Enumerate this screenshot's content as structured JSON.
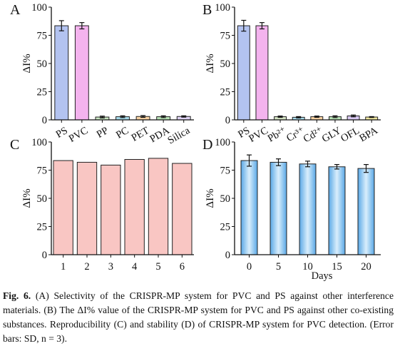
{
  "chart_data": [
    {
      "panel": "A",
      "type": "bar",
      "ylabel": "ΔI%",
      "ylim": [
        0,
        100
      ],
      "yticks": [
        0,
        25,
        50,
        75,
        100
      ],
      "grid": false,
      "categories": [
        "PS",
        "PVC",
        "PP",
        "PC",
        "PET",
        "PDA",
        "Silica"
      ],
      "values": [
        83.5,
        83.5,
        2.5,
        2.8,
        3.0,
        2.8,
        3.0
      ],
      "errors": [
        4.5,
        2.8,
        0.8,
        0.8,
        0.8,
        0.8,
        0.6
      ],
      "colors": [
        "#b3c3f0",
        "#f4b3ee",
        "#c9e6c3",
        "#a9dcec",
        "#f8d3a4",
        "#b9e3b7",
        "#ded2f3"
      ],
      "tick_rotation": -30
    },
    {
      "panel": "B",
      "type": "bar",
      "ylabel": "ΔI%",
      "ylim": [
        0,
        100
      ],
      "yticks": [
        0,
        25,
        50,
        75,
        100
      ],
      "grid": false,
      "categories": [
        "PS",
        "PVC",
        "Pb²⁺",
        "Cr³⁺",
        "Cd²⁺",
        "GLY",
        "OFL",
        "BPA"
      ],
      "values": [
        83.5,
        83.5,
        2.8,
        2.3,
        2.8,
        2.8,
        3.5,
        2.5
      ],
      "errors": [
        4.8,
        2.8,
        0.6,
        0.6,
        0.6,
        0.8,
        0.8,
        0.4
      ],
      "colors": [
        "#b3c3f0",
        "#f4b3ee",
        "#d6e5c5",
        "#a9dcec",
        "#f8d3a4",
        "#b9e3b7",
        "#d8c8f1",
        "#f1e8a0"
      ],
      "tick_rotation": -30
    },
    {
      "panel": "C",
      "type": "bar",
      "ylabel": "ΔI%",
      "ylim": [
        0,
        100
      ],
      "yticks": [
        0,
        25,
        50,
        75,
        100
      ],
      "grid": false,
      "categories": [
        "1",
        "2",
        "3",
        "4",
        "5",
        "6"
      ],
      "values": [
        83.5,
        82,
        79.5,
        84.5,
        85.5,
        81
      ],
      "colors": [
        "#f9c6c3"
      ]
    },
    {
      "panel": "D",
      "type": "bar",
      "ylabel": "ΔI%",
      "xlabel": "Days",
      "ylim": [
        0,
        100
      ],
      "yticks": [
        0,
        25,
        50,
        75,
        100
      ],
      "grid": false,
      "categories": [
        "0",
        "5",
        "10",
        "15",
        "20"
      ],
      "values": [
        83.5,
        82,
        80.5,
        78,
        76.5
      ],
      "errors": [
        5,
        3,
        2.5,
        2,
        3.5
      ],
      "colors": [
        "#7cc2ee"
      ],
      "bar_style": "gradient"
    }
  ],
  "caption": {
    "label": "Fig. 6.",
    "text": "(A) Selectivity of the CRISPR-MP system for PVC and PS against other interference materials. (B) The ΔI% value of the CRISPR-MP system for PVC and PS against other co-existing substances. Reproducibility (C) and stability (D) of CRISPR-MP system for PVC detection. (Error bars: SD, n = 3)."
  }
}
